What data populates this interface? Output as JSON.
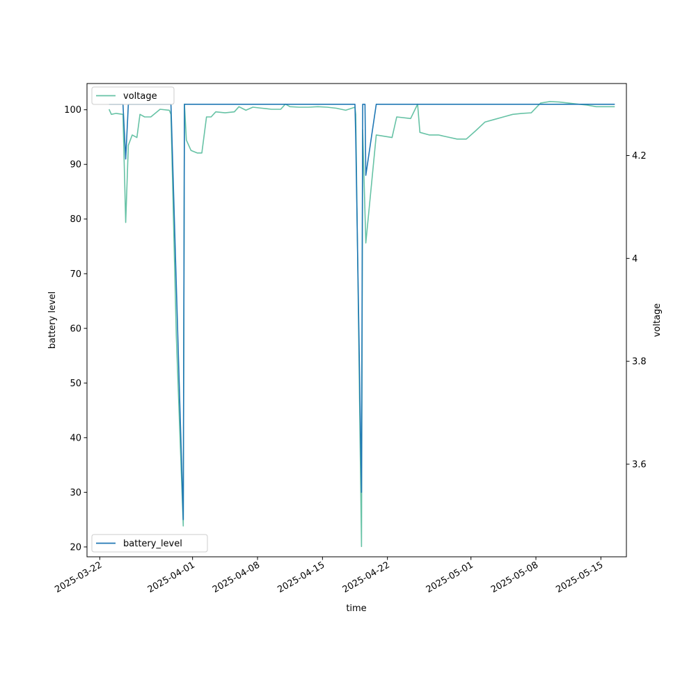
{
  "chart_data": {
    "type": "line",
    "xlabel": "time",
    "ylabel": "battery level",
    "y2label": "voltage",
    "x_ticks": [
      "2025-03-22",
      "2025-04-01",
      "2025-04-08",
      "2025-04-15",
      "2025-04-22",
      "2025-05-01",
      "2025-05-08",
      "2025-05-15"
    ],
    "y_ticks": [
      20,
      30,
      40,
      50,
      60,
      70,
      80,
      90,
      100
    ],
    "y2_ticks": [
      3.6,
      3.8,
      4.0,
      4.2
    ],
    "xlim": [
      "2025-03-20T15:00",
      "2025-05-17T18:00"
    ],
    "ylim": [
      18.2,
      104.8
    ],
    "y2lim": [
      3.42,
      4.34
    ],
    "grid": false,
    "legend": [
      {
        "name": "voltage",
        "placement": "upper-left"
      },
      {
        "name": "battery_level",
        "placement": "lower-left"
      }
    ],
    "colors": {
      "battery_level": "#1f77b4",
      "voltage": "#66c2a5"
    },
    "series": [
      {
        "name": "battery_level",
        "axis": "left",
        "points": [
          [
            "2025-03-23T00:00",
            101
          ],
          [
            "2025-03-24T12:00",
            101
          ],
          [
            "2025-03-24T19:00",
            91
          ],
          [
            "2025-03-25T02:00",
            101
          ],
          [
            "2025-03-29T16:00",
            101
          ],
          [
            "2025-03-29T17:00",
            99
          ],
          [
            "2025-03-31T00:00",
            25
          ],
          [
            "2025-03-31T03:00",
            101
          ],
          [
            "2025-04-18T12:00",
            101
          ],
          [
            "2025-04-18T14:00",
            95
          ],
          [
            "2025-04-19T05:00",
            30
          ],
          [
            "2025-04-19T08:00",
            101
          ],
          [
            "2025-04-19T14:00",
            101
          ],
          [
            "2025-04-19T16:00",
            88
          ],
          [
            "2025-04-20T19:00",
            101
          ],
          [
            "2025-05-16T12:00",
            101
          ]
        ]
      },
      {
        "name": "voltage",
        "axis": "right",
        "points": [
          [
            "2025-03-23T00:00",
            4.29
          ],
          [
            "2025-03-23T06:00",
            4.28
          ],
          [
            "2025-03-23T18:00",
            4.282
          ],
          [
            "2025-03-24T12:00",
            4.28
          ],
          [
            "2025-03-24T19:00",
            4.07
          ],
          [
            "2025-03-25T02:00",
            4.22
          ],
          [
            "2025-03-25T12:00",
            4.24
          ],
          [
            "2025-03-26T00:00",
            4.235
          ],
          [
            "2025-03-26T08:00",
            4.28
          ],
          [
            "2025-03-26T20:00",
            4.275
          ],
          [
            "2025-03-27T12:00",
            4.275
          ],
          [
            "2025-03-28T12:00",
            4.29
          ],
          [
            "2025-03-29T12:00",
            4.288
          ],
          [
            "2025-03-29T16:00",
            4.28
          ],
          [
            "2025-03-30T06:00",
            3.85
          ],
          [
            "2025-03-31T00:00",
            3.48
          ],
          [
            "2025-03-31T03:00",
            4.3
          ],
          [
            "2025-03-31T08:00",
            4.23
          ],
          [
            "2025-03-31T20:00",
            4.21
          ],
          [
            "2025-04-01T12:00",
            4.205
          ],
          [
            "2025-04-02T00:00",
            4.205
          ],
          [
            "2025-04-02T12:00",
            4.275
          ],
          [
            "2025-04-03T00:00",
            4.275
          ],
          [
            "2025-04-03T12:00",
            4.285
          ],
          [
            "2025-04-04T12:00",
            4.283
          ],
          [
            "2025-04-05T12:00",
            4.285
          ],
          [
            "2025-04-06T00:00",
            4.295
          ],
          [
            "2025-04-06T18:00",
            4.288
          ],
          [
            "2025-04-07T12:00",
            4.294
          ],
          [
            "2025-04-08T12:00",
            4.292
          ],
          [
            "2025-04-09T12:00",
            4.29
          ],
          [
            "2025-04-10T12:00",
            4.29
          ],
          [
            "2025-04-11T00:00",
            4.3
          ],
          [
            "2025-04-11T12:00",
            4.295
          ],
          [
            "2025-04-12T12:00",
            4.294
          ],
          [
            "2025-04-13T12:00",
            4.294
          ],
          [
            "2025-04-14T12:00",
            4.295
          ],
          [
            "2025-04-15T12:00",
            4.294
          ],
          [
            "2025-04-16T12:00",
            4.292
          ],
          [
            "2025-04-17T12:00",
            4.288
          ],
          [
            "2025-04-18T12:00",
            4.294
          ],
          [
            "2025-04-18T14:00",
            4.28
          ],
          [
            "2025-04-19T05:00",
            3.44
          ],
          [
            "2025-04-19T08:00",
            4.25
          ],
          [
            "2025-04-19T16:00",
            4.03
          ],
          [
            "2025-04-20T19:00",
            4.24
          ],
          [
            "2025-04-21T12:00",
            4.238
          ],
          [
            "2025-04-22T12:00",
            4.235
          ],
          [
            "2025-04-23T00:00",
            4.275
          ],
          [
            "2025-04-24T12:00",
            4.272
          ],
          [
            "2025-04-25T06:00",
            4.3
          ],
          [
            "2025-04-25T12:00",
            4.245
          ],
          [
            "2025-04-26T12:00",
            4.24
          ],
          [
            "2025-04-27T12:00",
            4.24
          ],
          [
            "2025-04-28T12:00",
            4.236
          ],
          [
            "2025-04-29T12:00",
            4.232
          ],
          [
            "2025-04-30T12:00",
            4.232
          ],
          [
            "2025-05-01T12:00",
            4.248
          ],
          [
            "2025-05-02T12:00",
            4.265
          ],
          [
            "2025-05-03T12:00",
            4.27
          ],
          [
            "2025-05-04T12:00",
            4.275
          ],
          [
            "2025-05-05T12:00",
            4.28
          ],
          [
            "2025-05-06T12:00",
            4.282
          ],
          [
            "2025-05-07T12:00",
            4.283
          ],
          [
            "2025-05-08T12:00",
            4.302
          ],
          [
            "2025-05-09T12:00",
            4.305
          ],
          [
            "2025-05-10T12:00",
            4.304
          ],
          [
            "2025-05-11T12:00",
            4.302
          ],
          [
            "2025-05-12T12:00",
            4.3
          ],
          [
            "2025-05-13T12:00",
            4.298
          ],
          [
            "2025-05-14T12:00",
            4.295
          ],
          [
            "2025-05-16T12:00",
            4.295
          ]
        ]
      }
    ]
  }
}
